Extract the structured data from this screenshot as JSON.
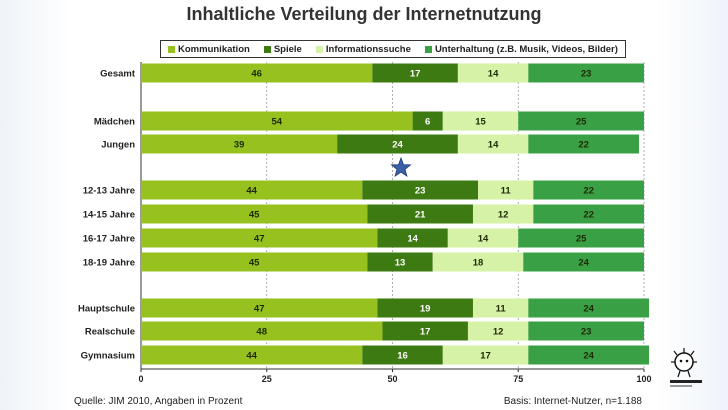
{
  "chart_data": {
    "type": "bar",
    "stacked": true,
    "orientation": "horizontal",
    "title": "Inhaltliche Verteilung der Internetnutzung",
    "categories": [
      "Gesamt",
      "Mädchen",
      "Jungen",
      "12-13 Jahre",
      "14-15 Jahre",
      "16-17 Jahre",
      "18-19 Jahre",
      "Hauptschule",
      "Realschule",
      "Gymnasium"
    ],
    "series": [
      {
        "name": "Kommunikation",
        "color": "#97c11f",
        "values": [
          46,
          54,
          39,
          44,
          45,
          47,
          45,
          47,
          48,
          44
        ]
      },
      {
        "name": "Spiele",
        "color": "#3e7a12",
        "values": [
          17,
          6,
          24,
          23,
          21,
          14,
          13,
          19,
          17,
          16
        ]
      },
      {
        "name": "Informationssuche",
        "color": "#d6f2a6",
        "values": [
          14,
          15,
          14,
          11,
          12,
          14,
          18,
          11,
          12,
          17
        ]
      },
      {
        "name": "Unterhaltung (z.B. Musik, Videos, Bilder)",
        "color": "#3aa045",
        "values": [
          23,
          25,
          22,
          22,
          22,
          25,
          24,
          24,
          23,
          24
        ]
      }
    ],
    "x_ticks": [
      0,
      25,
      50,
      75,
      100
    ],
    "xlim": [
      0,
      100
    ],
    "legend_position": "top",
    "grid": "vertical dashed"
  },
  "footer": {
    "source": "Quelle: JIM 2010, Angaben in Prozent",
    "basis": "Basis: Internet-Nutzer, n=1.188"
  },
  "decor": {
    "star_color": "#3a5fa8",
    "logo_icon": "robot-mascot-icon"
  }
}
